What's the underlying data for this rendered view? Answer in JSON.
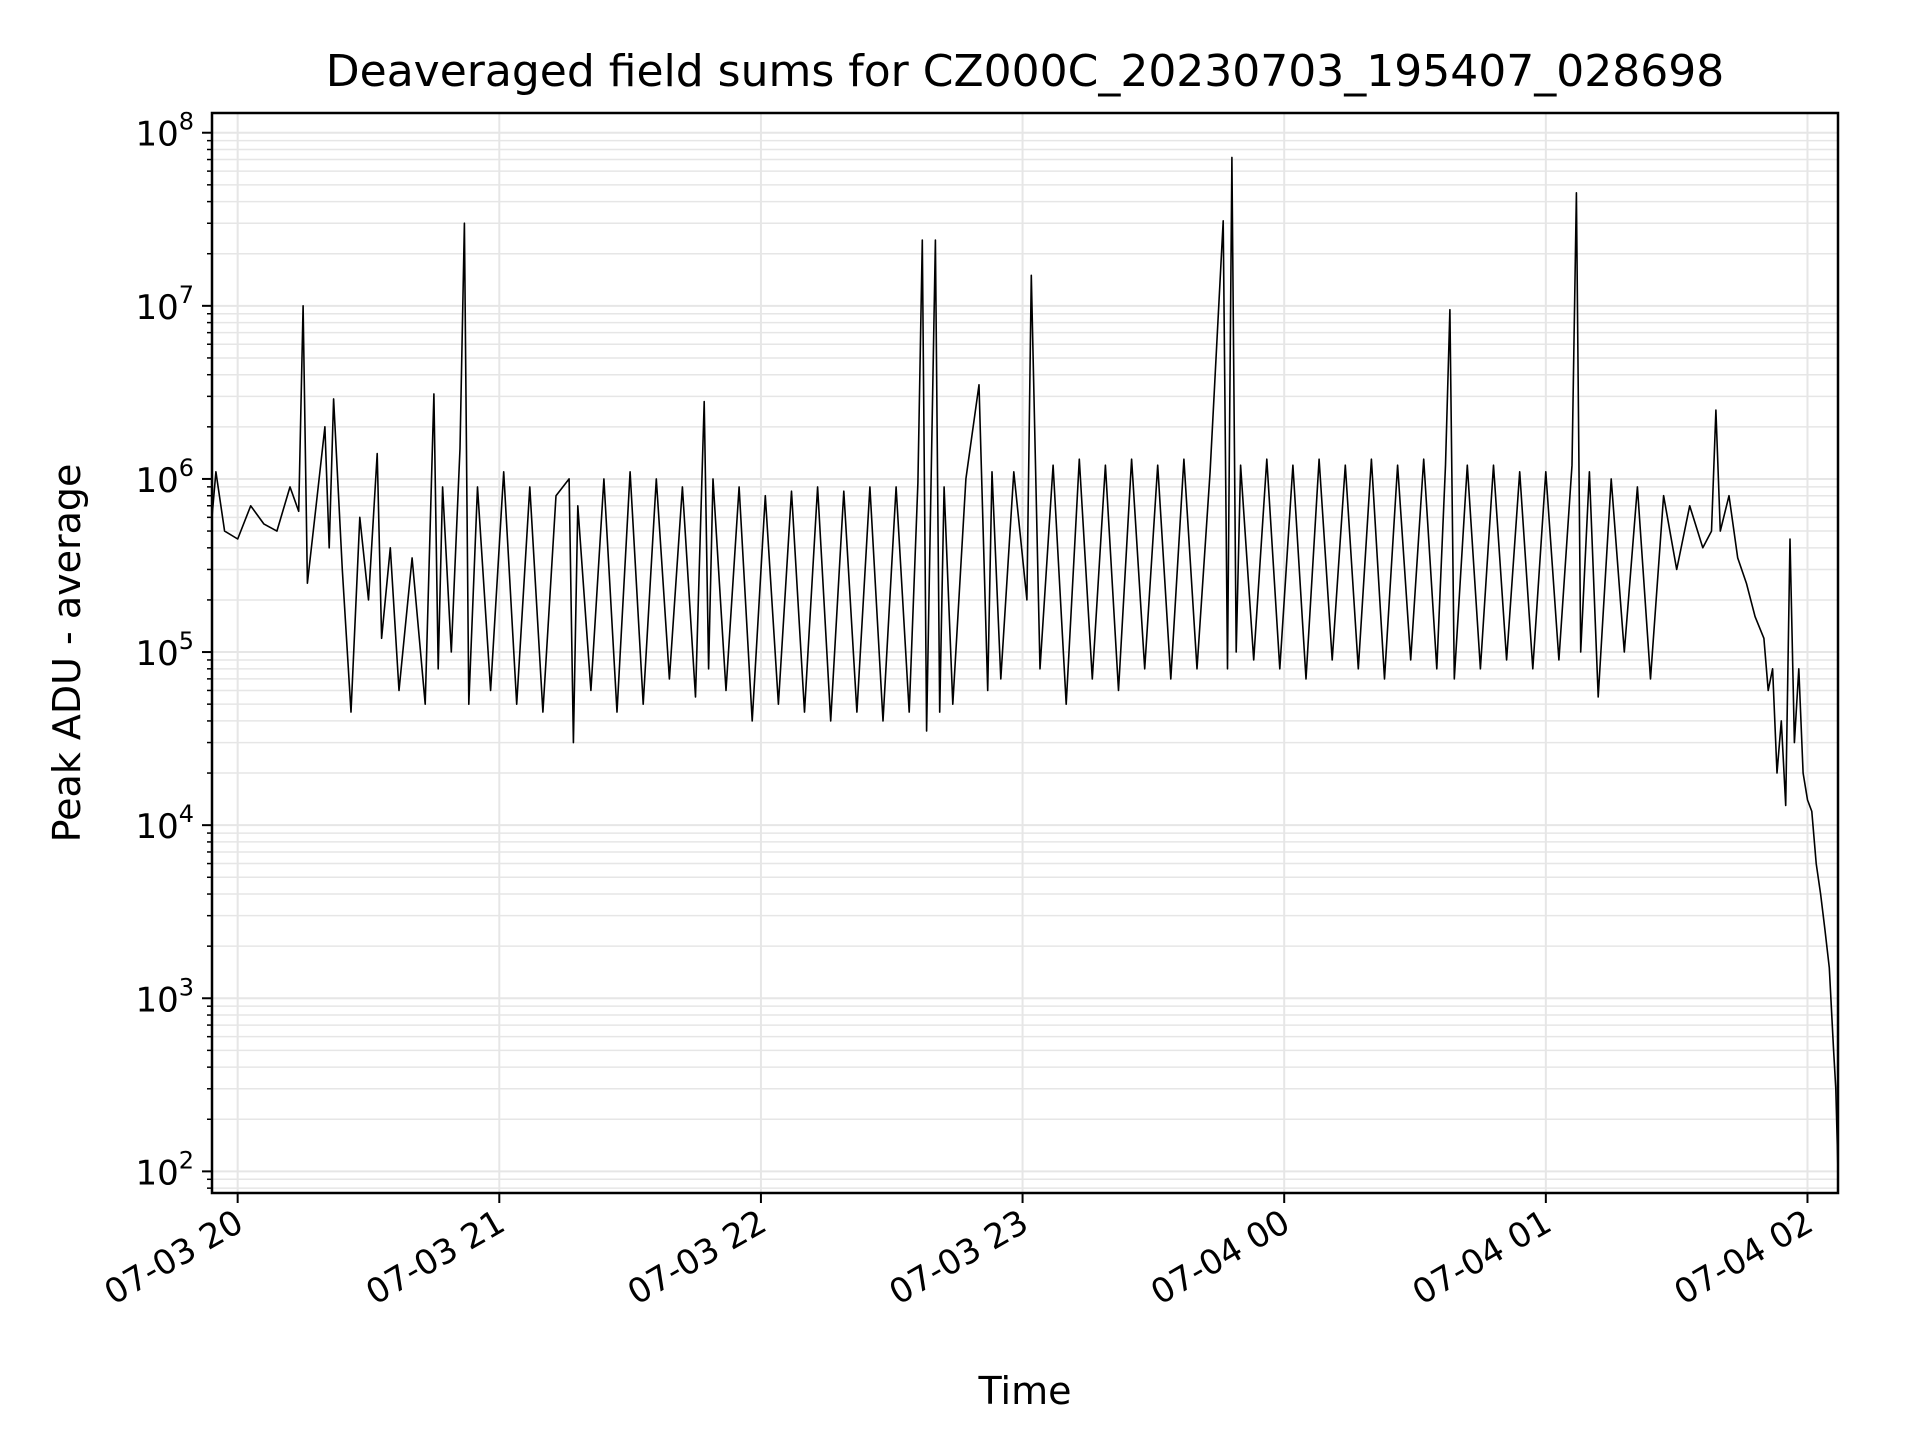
{
  "chart_data": {
    "type": "line",
    "title": "Deaveraged field sums for CZ000C_20230703_195407_028698",
    "xlabel": "Time",
    "ylabel": "Peak ADU - average",
    "yscale": "log",
    "ylim": [
      75,
      130000000
    ],
    "xlim": [
      "2023-07-03 19:54:07",
      "2023-07-04 02:07:00"
    ],
    "grid": true,
    "grid_minor": true,
    "x_ticks": [
      {
        "value": "2023-07-03 20:00",
        "label": "07-03 20"
      },
      {
        "value": "2023-07-03 21:00",
        "label": "07-03 21"
      },
      {
        "value": "2023-07-03 22:00",
        "label": "07-03 22"
      },
      {
        "value": "2023-07-03 23:00",
        "label": "07-03 23"
      },
      {
        "value": "2023-07-04 00:00",
        "label": "07-04 00"
      },
      {
        "value": "2023-07-04 01:00",
        "label": "07-04 01"
      },
      {
        "value": "2023-07-04 02:00",
        "label": "07-04 02"
      }
    ],
    "y_ticks": [
      {
        "value": 100,
        "base": "10",
        "exp": "2"
      },
      {
        "value": 1000,
        "base": "10",
        "exp": "3"
      },
      {
        "value": 10000,
        "base": "10",
        "exp": "4"
      },
      {
        "value": 100000,
        "base": "10",
        "exp": "5"
      },
      {
        "value": 1000000,
        "base": "10",
        "exp": "6"
      },
      {
        "value": 10000000,
        "base": "10",
        "exp": "7"
      },
      {
        "value": 100000000,
        "base": "10",
        "exp": "8"
      }
    ],
    "line_color": "#000000",
    "grid_color": "#e6e6e6",
    "series": [
      {
        "x": [
          "2023-07-03 19:54:07",
          "2023-07-03 19:55",
          "2023-07-03 19:57",
          "2023-07-03 20:00",
          "2023-07-03 20:03",
          "2023-07-03 20:06",
          "2023-07-03 20:09",
          "2023-07-03 20:12",
          "2023-07-03 20:14",
          "2023-07-03 20:15",
          "2023-07-03 20:16",
          "2023-07-03 20:18",
          "2023-07-03 20:20",
          "2023-07-03 20:21",
          "2023-07-03 20:22",
          "2023-07-03 20:24",
          "2023-07-03 20:26",
          "2023-07-03 20:28",
          "2023-07-03 20:30",
          "2023-07-03 20:32",
          "2023-07-03 20:33",
          "2023-07-03 20:35",
          "2023-07-03 20:37",
          "2023-07-03 20:40",
          "2023-07-03 20:43",
          "2023-07-03 20:45",
          "2023-07-03 20:46",
          "2023-07-03 20:47",
          "2023-07-03 20:49",
          "2023-07-03 20:51",
          "2023-07-03 20:52",
          "2023-07-03 20:53",
          "2023-07-03 20:55",
          "2023-07-03 20:58",
          "2023-07-03 21:01",
          "2023-07-03 21:04",
          "2023-07-03 21:07",
          "2023-07-03 21:10",
          "2023-07-03 21:13",
          "2023-07-03 21:16",
          "2023-07-03 21:17",
          "2023-07-03 21:18",
          "2023-07-03 21:21",
          "2023-07-03 21:24",
          "2023-07-03 21:27",
          "2023-07-03 21:30",
          "2023-07-03 21:33",
          "2023-07-03 21:36",
          "2023-07-03 21:39",
          "2023-07-03 21:42",
          "2023-07-03 21:45",
          "2023-07-03 21:47",
          "2023-07-03 21:48",
          "2023-07-03 21:49",
          "2023-07-03 21:52",
          "2023-07-03 21:55",
          "2023-07-03 21:58",
          "2023-07-03 22:01",
          "2023-07-03 22:04",
          "2023-07-03 22:07",
          "2023-07-03 22:10",
          "2023-07-03 22:13",
          "2023-07-03 22:16",
          "2023-07-03 22:19",
          "2023-07-03 22:22",
          "2023-07-03 22:25",
          "2023-07-03 22:28",
          "2023-07-03 22:31",
          "2023-07-03 22:34",
          "2023-07-03 22:36",
          "2023-07-03 22:37",
          "2023-07-03 22:38",
          "2023-07-03 22:40",
          "2023-07-03 22:41",
          "2023-07-03 22:42",
          "2023-07-03 22:44",
          "2023-07-03 22:47",
          "2023-07-03 22:50",
          "2023-07-03 22:52",
          "2023-07-03 22:53",
          "2023-07-03 22:55",
          "2023-07-03 22:58",
          "2023-07-03 23:01",
          "2023-07-03 23:02",
          "2023-07-03 23:04",
          "2023-07-03 23:07",
          "2023-07-03 23:10",
          "2023-07-03 23:13",
          "2023-07-03 23:16",
          "2023-07-03 23:19",
          "2023-07-03 23:22",
          "2023-07-03 23:25",
          "2023-07-03 23:28",
          "2023-07-03 23:31",
          "2023-07-03 23:34",
          "2023-07-03 23:37",
          "2023-07-03 23:40",
          "2023-07-03 23:43",
          "2023-07-03 23:46",
          "2023-07-03 23:47",
          "2023-07-03 23:48",
          "2023-07-03 23:49",
          "2023-07-03 23:50",
          "2023-07-03 23:53",
          "2023-07-03 23:56",
          "2023-07-03 23:59",
          "2023-07-04 00:02",
          "2023-07-04 00:05",
          "2023-07-04 00:08",
          "2023-07-04 00:11",
          "2023-07-04 00:14",
          "2023-07-04 00:17",
          "2023-07-04 00:20",
          "2023-07-04 00:23",
          "2023-07-04 00:26",
          "2023-07-04 00:29",
          "2023-07-04 00:32",
          "2023-07-04 00:35",
          "2023-07-04 00:37",
          "2023-07-04 00:38",
          "2023-07-04 00:39",
          "2023-07-04 00:42",
          "2023-07-04 00:45",
          "2023-07-04 00:48",
          "2023-07-04 00:51",
          "2023-07-04 00:54",
          "2023-07-04 00:57",
          "2023-07-04 01:00",
          "2023-07-04 01:03",
          "2023-07-04 01:06",
          "2023-07-04 01:07",
          "2023-07-04 01:08",
          "2023-07-04 01:10",
          "2023-07-04 01:12",
          "2023-07-04 01:15",
          "2023-07-04 01:18",
          "2023-07-04 01:21",
          "2023-07-04 01:24",
          "2023-07-04 01:27",
          "2023-07-04 01:30",
          "2023-07-04 01:33",
          "2023-07-04 01:36",
          "2023-07-04 01:38",
          "2023-07-04 01:39",
          "2023-07-04 01:40",
          "2023-07-04 01:42",
          "2023-07-04 01:44",
          "2023-07-04 01:46",
          "2023-07-04 01:48",
          "2023-07-04 01:50",
          "2023-07-04 01:51",
          "2023-07-04 01:52",
          "2023-07-04 01:53",
          "2023-07-04 01:54",
          "2023-07-04 01:55",
          "2023-07-04 01:56",
          "2023-07-04 01:57",
          "2023-07-04 01:58",
          "2023-07-04 01:59",
          "2023-07-04 02:00",
          "2023-07-04 02:01",
          "2023-07-04 02:02",
          "2023-07-04 02:03",
          "2023-07-04 02:04",
          "2023-07-04 02:05",
          "2023-07-04 02:06",
          "2023-07-04 02:06:30",
          "2023-07-04 02:07"
        ],
        "y": [
          600000,
          1100000,
          500000,
          450000,
          700000,
          550000,
          500000,
          900000,
          650000,
          10000000,
          250000,
          700000,
          2000000,
          400000,
          2900000,
          300000,
          45000,
          600000,
          200000,
          1400000,
          120000,
          400000,
          60000,
          350000,
          50000,
          3100000,
          80000,
          900000,
          100000,
          1500000,
          30000000,
          50000,
          900000,
          60000,
          1100000,
          50000,
          900000,
          45000,
          800000,
          1000000,
          30000,
          700000,
          60000,
          1000000,
          45000,
          1100000,
          50000,
          1000000,
          70000,
          900000,
          55000,
          2800000,
          80000,
          1000000,
          60000,
          900000,
          40000,
          800000,
          50000,
          850000,
          45000,
          900000,
          40000,
          850000,
          45000,
          900000,
          40000,
          900000,
          45000,
          950000,
          24000000,
          35000,
          24000000,
          45000,
          900000,
          50000,
          1000000,
          3500000,
          60000,
          1100000,
          70000,
          1100000,
          200000,
          15000000,
          80000,
          1200000,
          50000,
          1300000,
          70000,
          1200000,
          60000,
          1300000,
          80000,
          1200000,
          70000,
          1300000,
          80000,
          1100000,
          31000000,
          80000,
          72000000,
          100000,
          1200000,
          90000,
          1300000,
          80000,
          1200000,
          70000,
          1300000,
          90000,
          1200000,
          80000,
          1300000,
          70000,
          1200000,
          90000,
          1300000,
          80000,
          1200000,
          9500000,
          70000,
          1200000,
          80000,
          1200000,
          90000,
          1100000,
          80000,
          1100000,
          90000,
          1200000,
          45000000,
          100000,
          1100000,
          55000,
          1000000,
          100000,
          900000,
          70000,
          800000,
          300000,
          700000,
          400000,
          500000,
          2500000,
          500000,
          800000,
          350000,
          250000,
          160000,
          120000,
          60000,
          80000,
          20000,
          40000,
          13000,
          450000,
          30000,
          80000,
          20000,
          14000,
          12000,
          6000,
          4000,
          2500,
          1500,
          500,
          300,
          100
        ]
      }
    ]
  }
}
